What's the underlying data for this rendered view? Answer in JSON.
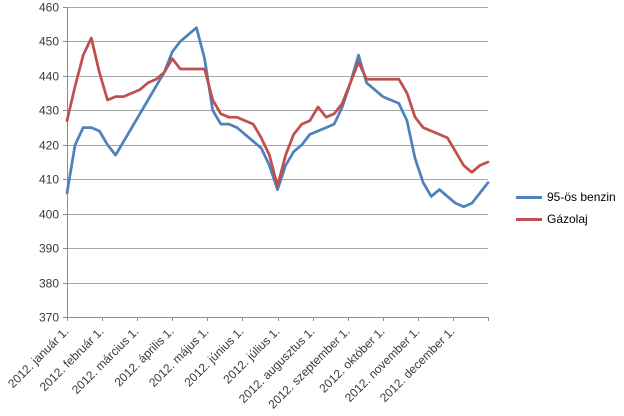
{
  "chart_data": {
    "type": "line",
    "title": "",
    "xlabel": "",
    "ylabel": "",
    "ylim": [
      370,
      460
    ],
    "y_ticks": [
      370,
      380,
      390,
      400,
      410,
      420,
      430,
      440,
      450,
      460
    ],
    "grid": true,
    "legend_position": "right",
    "x_labels": [
      "2012. január 1.",
      "2012. február 1.",
      "2012. március 1.",
      "2012. április 1.",
      "2012. május 1.",
      "2012. június 1.",
      "2012. július 1.",
      "2012. augusztus 1.",
      "2012. szeptember 1.",
      "2012. október 1.",
      "2012. november 1.",
      "2012. december 1."
    ],
    "colors": {
      "grid": "#A6A6A6",
      "axis": "#8C8C8C",
      "text": "#3A3A3A",
      "background": "#FFFFFF"
    },
    "series": [
      {
        "id": "benzin-95",
        "name": "95-ös benzin",
        "color": "#4F81BD",
        "values": [
          406,
          420,
          425,
          425,
          424,
          420,
          417,
          421,
          425,
          429,
          433,
          437,
          441,
          447,
          450,
          452,
          454,
          445,
          430,
          426,
          426,
          425,
          423,
          421,
          419,
          414,
          407,
          414,
          418,
          420,
          423,
          424,
          425,
          426,
          431,
          438,
          446,
          438,
          436,
          434,
          433,
          432,
          427,
          416,
          409,
          405,
          407,
          405,
          403,
          402,
          403,
          406,
          409
        ]
      },
      {
        "id": "gazolaj",
        "name": "Gázolaj",
        "color": "#C0504D",
        "values": [
          427,
          437,
          446,
          451,
          441,
          433,
          434,
          434,
          435,
          436,
          438,
          439,
          441,
          445,
          442,
          442,
          442,
          442,
          433,
          429,
          428,
          428,
          427,
          426,
          422,
          417,
          408,
          417,
          423,
          426,
          427,
          431,
          428,
          429,
          432,
          438,
          444,
          439,
          439,
          439,
          439,
          439,
          435,
          428,
          425,
          424,
          423,
          422,
          418,
          414,
          412,
          414,
          415
        ]
      }
    ]
  }
}
